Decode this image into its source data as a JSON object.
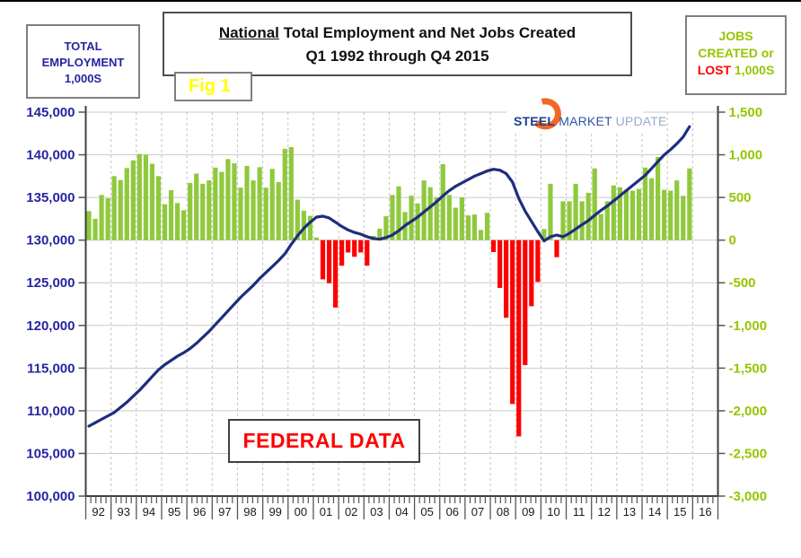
{
  "header": {
    "left_box": {
      "line1": "TOTAL",
      "line2": "EMPLOYMENT",
      "line3": "1,000S"
    },
    "title_box": {
      "emphasis": "National",
      "rest": " Total Employment and Net Jobs Created",
      "subtitle": "Q1 1992 through Q4 2015"
    },
    "fig_label": "Fig 1",
    "right_box": {
      "line1": "JOBS",
      "line2": "CREATED or",
      "line3_lost": "LOST",
      "line3_rest": " 1,000S"
    }
  },
  "logo": {
    "steel": "STEEL",
    "market": "MARKET",
    "update": "UPDATE"
  },
  "annotation": "FEDERAL DATA",
  "colors": {
    "axis_blue": "#2525A2",
    "green_text": "#94C600",
    "bar_green": "#8FC93C",
    "bar_red": "#FF0000",
    "line_navy": "#1F2D7E",
    "grid": "#CACACA",
    "grid_dash": "#C4C4C4",
    "axis_dark": "#3F3F3F",
    "tick": "#555555",
    "year_text": "#1a1a1a",
    "logo_orange": "#F26822"
  },
  "chart_data": {
    "type": "bar+line",
    "title": "National Total Employment and Net Jobs Created",
    "subtitle": "Q1 1992 through Q4 2015",
    "left_axis_title": "TOTAL EMPLOYMENT 1,000S",
    "right_axis_title": "JOBS CREATED or LOST 1,000S",
    "annotation": "FEDERAL DATA",
    "watermark": "STEEL MARKET UPDATE",
    "x_unit": "quarter",
    "start_year": 1992,
    "x_year_labels": [
      "92",
      "93",
      "94",
      "95",
      "96",
      "97",
      "98",
      "99",
      "00",
      "01",
      "02",
      "03",
      "04",
      "05",
      "06",
      "07",
      "08",
      "09",
      "10",
      "11",
      "12",
      "13",
      "14",
      "15",
      "16"
    ],
    "left_axis": {
      "min": 100000,
      "max": 145000,
      "tick_values": [
        145000,
        140000,
        135000,
        130000,
        125000,
        120000,
        115000,
        110000,
        105000,
        100000
      ],
      "tick_labels": [
        "145,000",
        "140,000",
        "135,000",
        "130,000",
        "125,000",
        "120,000",
        "115,000",
        "110,000",
        "105,000",
        "100,000"
      ]
    },
    "right_axis": {
      "min": -3000,
      "max": 1500,
      "tick_values": [
        1500,
        1000,
        500,
        0,
        -500,
        -1000,
        -1500,
        -2000,
        -2500,
        -3000
      ],
      "tick_labels": [
        "1,500",
        "1,000",
        "500",
        "0",
        "-500",
        "-1,000",
        "-1,500",
        "-2,000",
        "-2,500",
        "-3,000"
      ]
    },
    "bars_name": "Net Jobs Created or Lost (1,000s, quarterly)",
    "bars": [
      340,
      250,
      530,
      490,
      750,
      705,
      845,
      935,
      1010,
      1000,
      895,
      750,
      420,
      585,
      435,
      350,
      670,
      780,
      660,
      700,
      850,
      800,
      950,
      900,
      615,
      870,
      700,
      855,
      615,
      835,
      680,
      1070,
      1090,
      475,
      345,
      285,
      30,
      -460,
      -505,
      -790,
      -300,
      -145,
      -195,
      -145,
      -300,
      50,
      135,
      280,
      530,
      630,
      330,
      520,
      430,
      700,
      620,
      500,
      890,
      530,
      380,
      500,
      290,
      300,
      120,
      320,
      -140,
      -560,
      -910,
      -1920,
      -2300,
      -1465,
      -775,
      -490,
      130,
      660,
      -200,
      455,
      455,
      660,
      455,
      555,
      840,
      305,
      455,
      640,
      620,
      590,
      580,
      600,
      850,
      725,
      975,
      590,
      580,
      700,
      520,
      840
    ],
    "line_name": "Total Employment (1,000s)",
    "line": [
      108200,
      108600,
      109000,
      109400,
      109800,
      110400,
      111000,
      111700,
      112400,
      113200,
      114000,
      114800,
      115400,
      115900,
      116400,
      116800,
      117300,
      117900,
      118600,
      119300,
      120100,
      120900,
      121700,
      122500,
      123300,
      124000,
      124700,
      125500,
      126200,
      126900,
      127600,
      128400,
      129500,
      130500,
      131400,
      132100,
      132700,
      132800,
      132600,
      132100,
      131600,
      131200,
      130900,
      130700,
      130400,
      130200,
      130100,
      130300,
      130600,
      131100,
      131700,
      132200,
      132700,
      133300,
      133900,
      134500,
      135200,
      135800,
      136300,
      136700,
      137100,
      137500,
      137800,
      138100,
      138300,
      138200,
      137800,
      136800,
      134900,
      133400,
      132200,
      131000,
      129900,
      130400,
      130600,
      130400,
      130800,
      131300,
      131800,
      132300,
      132900,
      133500,
      134000,
      134600,
      135200,
      135800,
      136400,
      137000,
      137600,
      138400,
      139200,
      140000,
      140600,
      141300,
      142100,
      143300
    ]
  }
}
